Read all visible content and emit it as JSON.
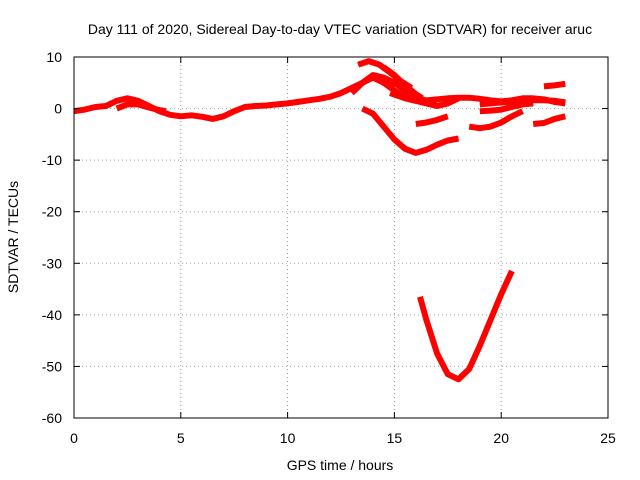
{
  "chart_data": {
    "type": "line",
    "title": "Day 111 of 2020, Sidereal Day-to-day VTEC variation (SDTVAR) for receiver aruc",
    "xlabel": "GPS time / hours",
    "ylabel": "SDTVAR / TECUs",
    "xlim": [
      0,
      25
    ],
    "ylim": [
      -60,
      10
    ],
    "xticks": [
      0,
      5,
      10,
      15,
      20,
      25
    ],
    "xtick_labels": [
      "0",
      "5",
      "10",
      "15",
      "20",
      "25"
    ],
    "yticks": [
      10,
      0,
      -10,
      -20,
      -30,
      -40,
      -50,
      -60
    ],
    "ytick_labels": [
      "10",
      "0",
      "-10",
      "-20",
      "-30",
      "-40",
      "-50",
      "-60"
    ],
    "grid": true,
    "legend": "none",
    "series_color": "#ff0000",
    "series": [
      {
        "name": "trace-1",
        "x": [
          0,
          0.5,
          1,
          1.5,
          2,
          2.5,
          3,
          3.5,
          4,
          4.5,
          5,
          5.5,
          6,
          6.5,
          7,
          7.5,
          8,
          8.5,
          9,
          9.5,
          10,
          10.5,
          11,
          11.5,
          12,
          12.5,
          13,
          13.5,
          14,
          14.5,
          15
        ],
        "y": [
          -0.5,
          -0.2,
          0.3,
          0.5,
          1.5,
          2,
          1.5,
          0.5,
          -0.5,
          -1.2,
          -1.5,
          -1.3,
          -1.6,
          -2,
          -1.5,
          -0.5,
          0.3,
          0.5,
          0.6,
          0.8,
          1,
          1.3,
          1.6,
          1.9,
          2.3,
          3,
          4,
          5,
          6,
          5,
          4
        ]
      },
      {
        "name": "trace-2",
        "x": [
          2,
          2.5,
          3,
          3.5,
          4,
          4.3
        ],
        "y": [
          0,
          0.8,
          0.8,
          0.2,
          -0.3,
          -0.5
        ]
      },
      {
        "name": "trace-3",
        "x": [
          13.3,
          13.8,
          14.3,
          14.8,
          15.3,
          15.8
        ],
        "y": [
          8.5,
          9.2,
          8.5,
          7,
          5.3,
          4
        ]
      },
      {
        "name": "trace-4",
        "x": [
          13,
          13.5,
          14,
          14.5,
          15,
          15.5,
          16,
          16.5,
          17
        ],
        "y": [
          3,
          5,
          6.5,
          6,
          5,
          3.5,
          2.2,
          1.5,
          1.2
        ]
      },
      {
        "name": "trace-5",
        "x": [
          14.5,
          15,
          15.5,
          16,
          16.5,
          17,
          17.5,
          18,
          18.5,
          19,
          19.5,
          20,
          20.5,
          21,
          21.5,
          22,
          22.5,
          23
        ],
        "y": [
          5,
          3.5,
          2.2,
          1.5,
          1.6,
          1.8,
          2,
          2.1,
          2.1,
          1.9,
          1.6,
          1.4,
          1.6,
          2,
          2,
          1.8,
          1.3,
          1
        ]
      },
      {
        "name": "trace-6",
        "x": [
          14.5,
          15,
          15.5,
          16,
          16.3
        ],
        "y": [
          8,
          6.5,
          4.5,
          2.8,
          2
        ]
      },
      {
        "name": "trace-7",
        "x": [
          14.8,
          15.5,
          16,
          16.5,
          17,
          17.5,
          18
        ],
        "y": [
          3,
          2,
          1.5,
          1,
          0.5,
          1,
          2
        ]
      },
      {
        "name": "trace-8",
        "x": [
          13.5,
          14,
          14.5,
          15,
          15.5,
          16,
          16.5,
          17,
          17.5,
          18
        ],
        "y": [
          0,
          -1,
          -3.5,
          -6,
          -7.8,
          -8.6,
          -8,
          -7,
          -6.2,
          -5.8
        ]
      },
      {
        "name": "trace-9",
        "x": [
          16,
          16.5,
          17,
          17.5
        ],
        "y": [
          -3,
          -2.7,
          -2.2,
          -1.5
        ]
      },
      {
        "name": "trace-10",
        "x": [
          18.5,
          19,
          19.5,
          20,
          20.5,
          21
        ],
        "y": [
          -3.5,
          -3.8,
          -3.5,
          -2.7,
          -1.5,
          -0.5
        ]
      },
      {
        "name": "trace-11",
        "x": [
          19,
          19.5,
          20,
          20.5,
          21,
          21.5
        ],
        "y": [
          -0.5,
          -0.4,
          -0.2,
          0.3,
          0.8,
          1
        ]
      },
      {
        "name": "trace-12",
        "x": [
          19,
          19.5,
          20,
          20.5,
          21,
          21.5,
          22,
          22.5,
          23
        ],
        "y": [
          0.8,
          1,
          1.2,
          1.3,
          1.5,
          1.6,
          1.6,
          1.5,
          1.2
        ]
      },
      {
        "name": "trace-13",
        "x": [
          21.5,
          22,
          22.5,
          23
        ],
        "y": [
          -3,
          -2.8,
          -2,
          -1.5
        ]
      },
      {
        "name": "trace-14",
        "x": [
          22,
          22.5,
          23
        ],
        "y": [
          4.3,
          4.5,
          4.8
        ]
      },
      {
        "name": "trace-15",
        "x": [
          16.2,
          16.5,
          17,
          17.5,
          18,
          18.5,
          19,
          19.5,
          20,
          20.5
        ],
        "y": [
          -36.5,
          -41,
          -47.5,
          -51.5,
          -52.5,
          -50.5,
          -46,
          -41,
          -36,
          -31.5
        ]
      }
    ]
  }
}
